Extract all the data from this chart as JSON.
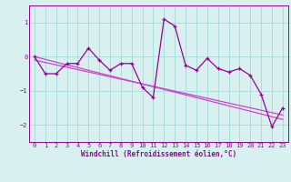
{
  "x": [
    0,
    1,
    2,
    3,
    4,
    5,
    6,
    7,
    8,
    9,
    10,
    11,
    12,
    13,
    14,
    15,
    16,
    17,
    18,
    19,
    20,
    21,
    22,
    23
  ],
  "y_line": [
    0.0,
    -0.5,
    -0.5,
    -0.2,
    -0.2,
    0.25,
    -0.1,
    -0.4,
    -0.2,
    -0.2,
    -0.9,
    -1.2,
    1.1,
    0.9,
    -0.25,
    -0.4,
    -0.05,
    -0.35,
    -0.45,
    -0.35,
    -0.55,
    -1.1,
    -2.05,
    -1.5
  ],
  "y_trend1": [
    0.0,
    -0.08,
    -0.16,
    -0.24,
    -0.32,
    -0.4,
    -0.48,
    -0.56,
    -0.64,
    -0.72,
    -0.8,
    -0.88,
    -0.96,
    -1.04,
    -1.12,
    -1.2,
    -1.28,
    -1.36,
    -1.44,
    -1.52,
    -1.6,
    -1.68,
    -1.76,
    -1.84
  ],
  "y_trend2": [
    -0.1,
    -0.17,
    -0.24,
    -0.31,
    -0.38,
    -0.45,
    -0.52,
    -0.59,
    -0.66,
    -0.73,
    -0.8,
    -0.87,
    -0.94,
    -1.01,
    -1.08,
    -1.15,
    -1.22,
    -1.29,
    -1.36,
    -1.43,
    -1.5,
    -1.57,
    -1.64,
    -1.71
  ],
  "line_color": "#990099",
  "trend_color": "#cc44cc",
  "bg_color": "#d8f0f0",
  "grid_color": "#aadddd",
  "axis_color": "#990099",
  "xlabel": "Windchill (Refroidissement éolien,°C)",
  "ylim": [
    -2.5,
    1.5
  ],
  "xlim": [
    -0.5,
    23.5
  ],
  "yticks": [
    -2,
    -1,
    0,
    1
  ],
  "xticks": [
    0,
    1,
    2,
    3,
    4,
    5,
    6,
    7,
    8,
    9,
    10,
    11,
    12,
    13,
    14,
    15,
    16,
    17,
    18,
    19,
    20,
    21,
    22,
    23
  ],
  "tick_fontsize": 5.0,
  "xlabel_fontsize": 5.5
}
